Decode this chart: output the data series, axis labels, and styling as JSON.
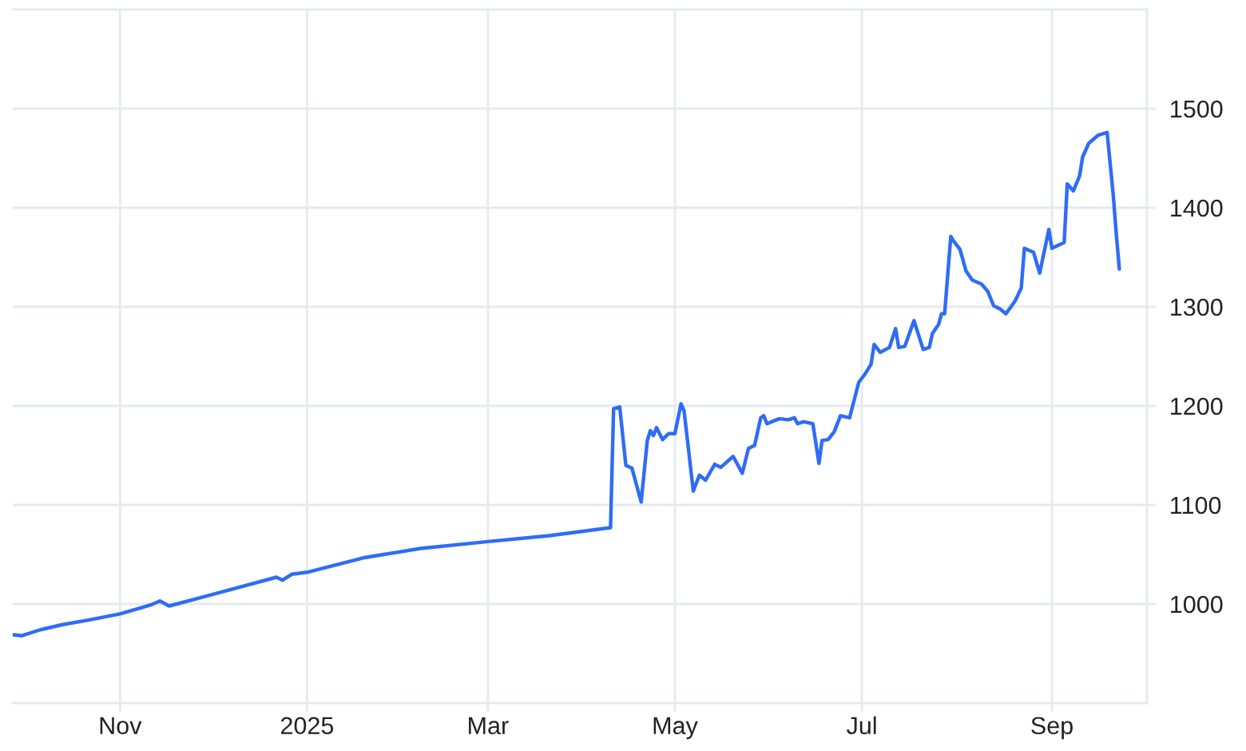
{
  "chart_data": {
    "type": "line",
    "color": "#2f6cf6",
    "grid": true,
    "xlim": [
      "2024-09-27",
      "2025-10-02"
    ],
    "xticks": [
      {
        "value": "2024-11-01",
        "label": "Nov"
      },
      {
        "value": "2025-01-01",
        "label": "2025"
      },
      {
        "value": "2025-03-01",
        "label": "Mar"
      },
      {
        "value": "2025-05-01",
        "label": "May"
      },
      {
        "value": "2025-07-01",
        "label": "Jul"
      },
      {
        "value": "2025-09-01",
        "label": "Sep"
      }
    ],
    "ylim": [
      900,
      1600
    ],
    "yticks": [
      1000,
      1100,
      1200,
      1300,
      1400,
      1500
    ],
    "x": [
      "2024-09-27",
      "2024-09-30",
      "2024-10-06",
      "2024-10-13",
      "2024-10-22",
      "2024-11-01",
      "2024-11-11",
      "2024-11-14",
      "2024-11-17",
      "2024-12-04",
      "2024-12-22",
      "2024-12-24",
      "2024-12-27",
      "2025-01-01",
      "2025-01-20",
      "2025-02-07",
      "2025-03-01",
      "2025-03-21",
      "2025-04-10",
      "2025-04-11",
      "2025-04-13",
      "2025-04-15",
      "2025-04-17",
      "2025-04-20",
      "2025-04-22",
      "2025-04-23",
      "2025-04-24",
      "2025-04-25",
      "2025-04-27",
      "2025-04-29",
      "2025-05-01",
      "2025-05-03",
      "2025-05-04",
      "2025-05-07",
      "2025-05-09",
      "2025-05-11",
      "2025-05-14",
      "2025-05-16",
      "2025-05-20",
      "2025-05-23",
      "2025-05-25",
      "2025-05-27",
      "2025-05-29",
      "2025-05-30",
      "2025-05-31",
      "2025-06-04",
      "2025-06-07",
      "2025-06-09",
      "2025-06-10",
      "2025-06-12",
      "2025-06-15",
      "2025-06-17",
      "2025-06-18",
      "2025-06-20",
      "2025-06-22",
      "2025-06-24",
      "2025-06-27",
      "2025-06-30",
      "2025-07-02",
      "2025-07-04",
      "2025-07-05",
      "2025-07-07",
      "2025-07-10",
      "2025-07-12",
      "2025-07-13",
      "2025-07-15",
      "2025-07-18",
      "2025-07-21",
      "2025-07-23",
      "2025-07-24",
      "2025-07-26",
      "2025-07-27",
      "2025-07-28",
      "2025-07-30",
      "2025-07-31",
      "2025-08-02",
      "2025-08-04",
      "2025-08-06",
      "2025-08-09",
      "2025-08-11",
      "2025-08-13",
      "2025-08-15",
      "2025-08-17",
      "2025-08-20",
      "2025-08-22",
      "2025-08-23",
      "2025-08-26",
      "2025-08-28",
      "2025-08-31",
      "2025-09-01",
      "2025-09-05",
      "2025-09-06",
      "2025-09-08",
      "2025-09-10",
      "2025-09-11",
      "2025-09-13",
      "2025-09-16",
      "2025-09-19",
      "2025-09-21",
      "2025-09-22",
      "2025-09-23"
    ],
    "values": [
      969,
      968,
      974,
      979,
      984,
      990,
      999,
      1003,
      998,
      1012,
      1027,
      1024,
      1030,
      1032,
      1047,
      1056,
      1063,
      1069,
      1077,
      1197,
      1199,
      1140,
      1137,
      1103,
      1165,
      1175,
      1170,
      1178,
      1166,
      1172,
      1172,
      1202,
      1195,
      1114,
      1130,
      1125,
      1141,
      1138,
      1149,
      1132,
      1157,
      1160,
      1188,
      1190,
      1182,
      1187,
      1186,
      1188,
      1182,
      1184,
      1182,
      1142,
      1165,
      1166,
      1174,
      1190,
      1188,
      1224,
      1232,
      1242,
      1262,
      1254,
      1259,
      1278,
      1259,
      1260,
      1286,
      1257,
      1259,
      1273,
      1282,
      1293,
      1293,
      1371,
      1366,
      1358,
      1336,
      1327,
      1323,
      1316,
      1301,
      1298,
      1293,
      1306,
      1319,
      1359,
      1355,
      1334,
      1378,
      1359,
      1365,
      1424,
      1417,
      1432,
      1451,
      1465,
      1473,
      1476,
      1413,
      1373,
      1338
    ]
  }
}
